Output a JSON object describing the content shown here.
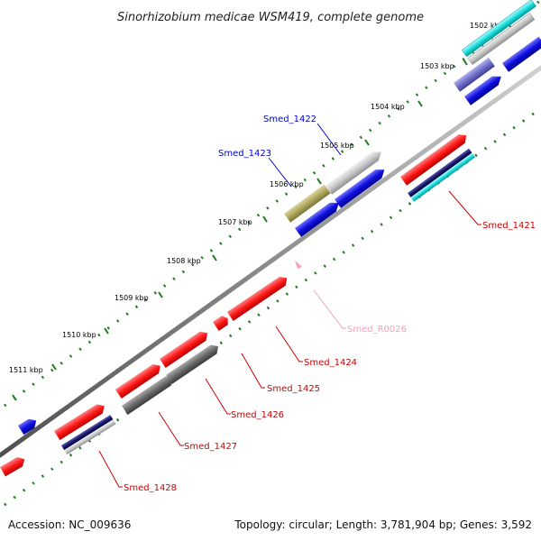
{
  "title": "Sinorhizobium medicae WSM419, complete genome",
  "footer": {
    "accession": "Accession: NC_009636",
    "summary": "Topology: circular; Length: 3,781,904 bp; Genes: 3,592"
  },
  "ticks": [
    "1502 kbp",
    "1503 kbp",
    "1504 kbp",
    "1505 kbp",
    "1506 kbp",
    "1507 kbp",
    "1508 kbp",
    "1509 kbp",
    "1510 kbp",
    "1511 kbp"
  ],
  "gene_labels": {
    "smed_1422": "Smed_1422",
    "smed_1423": "Smed_1423",
    "smed_1421": "Smed_1421",
    "smed_r0026": "Smed_R0026",
    "smed_1424": "Smed_1424",
    "smed_1425": "Smed_1425",
    "smed_1426": "Smed_1426",
    "smed_1427": "Smed_1427",
    "smed_1428": "Smed_1428"
  },
  "colors": {
    "backbone": "#8c8c8c",
    "tick_marks": "#1f7a1f",
    "label_blue": "#0000cc",
    "label_red": "#cc0000",
    "label_pink": "#f0a0c0",
    "feature_red": "#ff1a1a",
    "feature_blue": "#1010e0",
    "feature_cyan": "#22dddd",
    "feature_grey": "#c8c8c8",
    "feature_darkgrey": "#6a6a6a",
    "feature_olive": "#b0a860",
    "feature_purple": "#7070cc",
    "feature_navy": "#1a1a70"
  }
}
